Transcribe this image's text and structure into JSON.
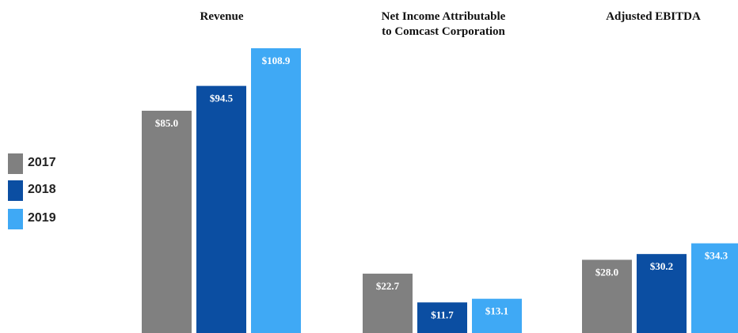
{
  "chart_data": {
    "type": "bar",
    "categories": [
      "Revenue",
      "Net Income Attributable\nto Comcast Corporation",
      "Adjusted EBITDA"
    ],
    "series": [
      {
        "name": "2017",
        "color": "#808080",
        "values": [
          85.0,
          22.7,
          28.0
        ],
        "labels": [
          "$85.0",
          "$22.7",
          "$28.0"
        ]
      },
      {
        "name": "2018",
        "color": "#0b4ea2",
        "values": [
          94.5,
          11.7,
          30.2
        ],
        "labels": [
          "$94.5",
          "$11.7",
          "$30.2"
        ]
      },
      {
        "name": "2019",
        "color": "#3fa9f5",
        "values": [
          108.9,
          13.1,
          34.3
        ],
        "labels": [
          "$108.9",
          "$13.1",
          "$34.3"
        ]
      }
    ],
    "legend_position": "left"
  }
}
